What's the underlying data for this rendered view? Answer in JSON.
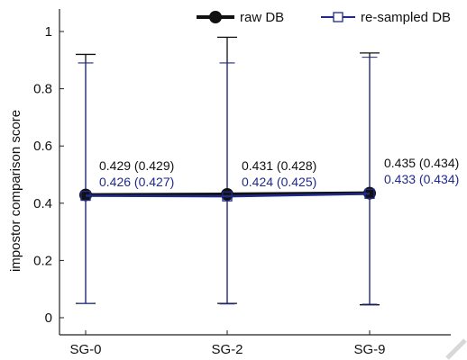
{
  "chart_data": {
    "type": "line",
    "categories": [
      "SG-0",
      "SG-2",
      "SG-9"
    ],
    "ylabel": "impostor comparison score",
    "ylim": [
      0,
      1
    ],
    "yticks": [
      0,
      0.2,
      0.4,
      0.6,
      0.8,
      1
    ],
    "ytick_labels": [
      "0",
      "0.2",
      "0.4",
      "0.6",
      "0.8",
      "1"
    ],
    "legend_position": "top-right",
    "series": [
      {
        "name": "raw DB",
        "color": "#111111",
        "marker": "filled-circle",
        "values": [
          0.429,
          0.431,
          0.435
        ],
        "lower": [
          0.05,
          0.05,
          0.045
        ],
        "upper": [
          0.92,
          0.98,
          0.925
        ]
      },
      {
        "name": "re-sampled DB",
        "color": "#1f2a8a",
        "marker": "open-square",
        "values": [
          0.426,
          0.424,
          0.433
        ],
        "lower": [
          0.05,
          0.048,
          0.047
        ],
        "upper": [
          0.89,
          0.89,
          0.91
        ]
      }
    ],
    "annotations": [
      {
        "text": "0.429 (0.429)",
        "series": 0,
        "category": 0
      },
      {
        "text": "0.426 (0.427)",
        "series": 1,
        "category": 0
      },
      {
        "text": "0.431 (0.428)",
        "series": 0,
        "category": 1
      },
      {
        "text": "0.424 (0.425)",
        "series": 1,
        "category": 1
      },
      {
        "text": "0.435 (0.434)",
        "series": 0,
        "category": 2
      },
      {
        "text": "0.433 (0.434)",
        "series": 1,
        "category": 2
      }
    ]
  }
}
